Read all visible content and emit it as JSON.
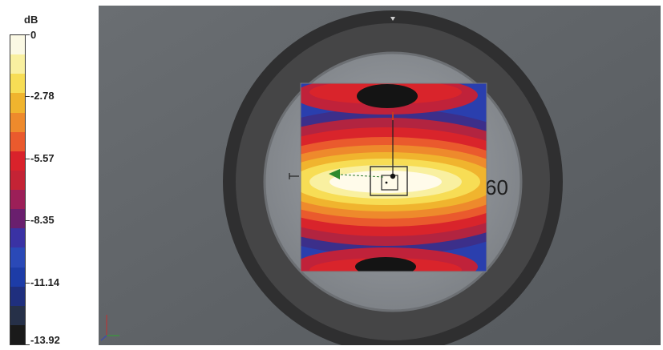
{
  "legend": {
    "unit": "dB",
    "ticks": [
      "0",
      "-2.78",
      "-5.57",
      "-8.35",
      "-11.14",
      "-13.92"
    ],
    "colors": [
      "#fbf9e4",
      "#f9f0a0",
      "#f7dd55",
      "#f0b42e",
      "#ee8a2c",
      "#ea5a2d",
      "#d9222b",
      "#c42335",
      "#9c1f58",
      "#6a1f6e",
      "#3a32a4",
      "#2a49b7",
      "#1d3ca7",
      "#1f2f7e",
      "#263048",
      "#1a1a1a"
    ]
  },
  "scene": {
    "peripheral_label": "60",
    "colors": {
      "background": "#5f6367",
      "outer_ring": "#3a3a3a",
      "inner_disc": "#8f9398",
      "heatmap_peak": "#fffbea",
      "null_region": "#141414"
    },
    "icons": [
      "arrow-left-icon",
      "target-marker-icon",
      "axis-triad-icon"
    ]
  }
}
